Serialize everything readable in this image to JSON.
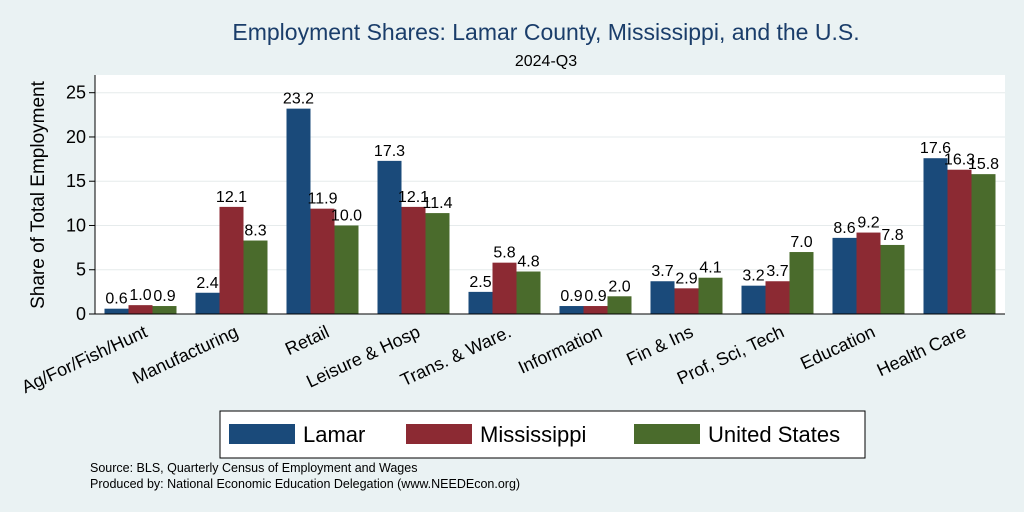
{
  "chart_data": {
    "type": "bar",
    "title": "Employment Shares: Lamar County, Mississippi, and the U.S.",
    "subtitle": "2024-Q3",
    "ylabel": "Share of Total Employment",
    "xlabel": "",
    "ylim": [
      0,
      27
    ],
    "yticks": [
      0,
      5,
      10,
      15,
      20,
      25
    ],
    "grid": true,
    "legend_position": "bottom",
    "categories": [
      "Ag/For/Fish/Hunt",
      "Manufacturing",
      "Retail",
      "Leisure & Hosp",
      "Trans. & Ware.",
      "Information",
      "Fin & Ins",
      "Prof, Sci, Tech",
      "Education",
      "Health Care"
    ],
    "series": [
      {
        "name": "Lamar",
        "color": "#1a4a7a",
        "values": [
          0.6,
          2.4,
          23.2,
          17.3,
          2.5,
          0.9,
          3.7,
          3.2,
          8.6,
          17.6
        ]
      },
      {
        "name": "Mississippi",
        "color": "#8c2a33",
        "values": [
          1.0,
          12.1,
          11.9,
          12.1,
          5.8,
          0.9,
          2.9,
          3.7,
          9.2,
          16.3
        ]
      },
      {
        "name": "United States",
        "color": "#4a6b2c",
        "values": [
          0.9,
          8.3,
          10.0,
          11.4,
          4.8,
          2.0,
          4.1,
          7.0,
          7.8,
          15.8
        ]
      }
    ],
    "notes": [
      "Source: BLS, Quarterly Census of Employment and Wages",
      "Produced by: National Economic Education Delegation (www.NEEDEcon.org)"
    ]
  }
}
